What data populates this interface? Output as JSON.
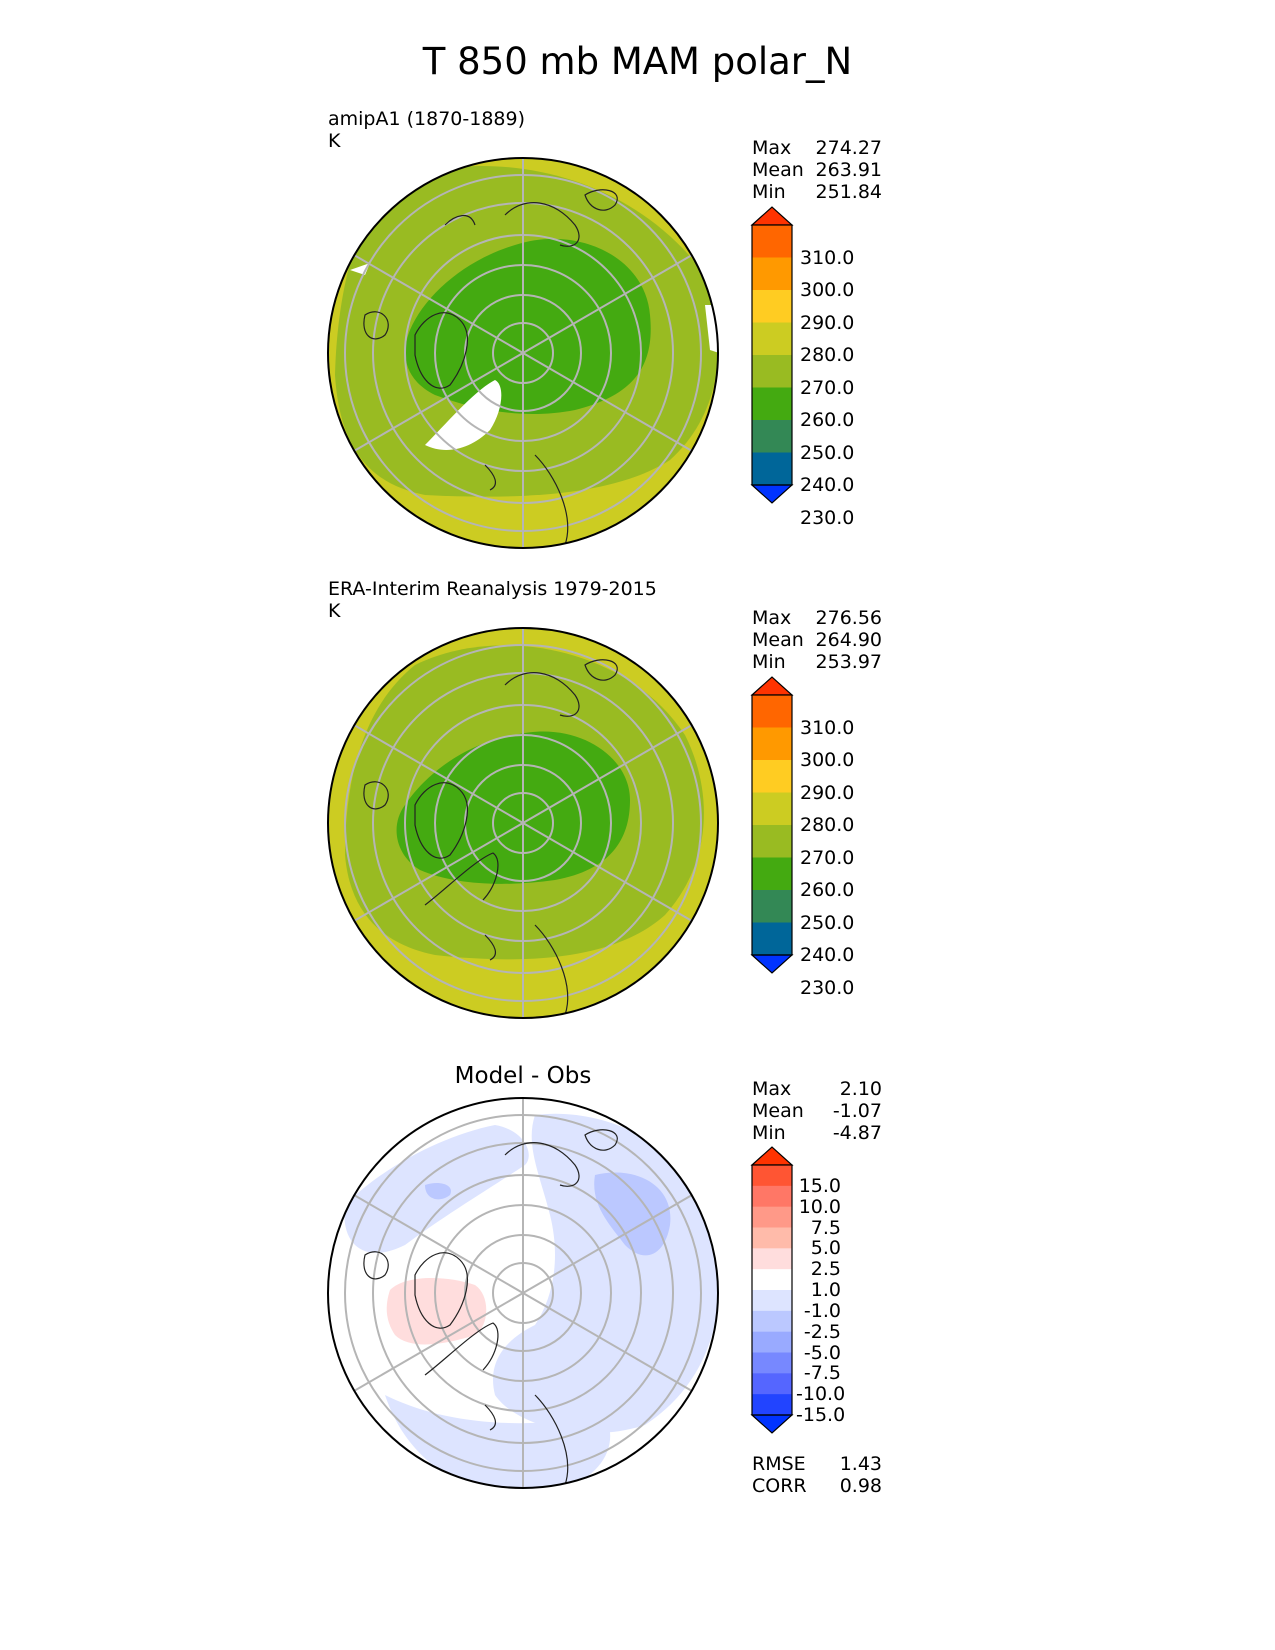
{
  "title": "T 850 mb MAM polar_N",
  "panels": [
    {
      "label": "amipA1 (1870-1889)",
      "units": "K",
      "stats": [
        [
          "Max",
          "274.27"
        ],
        [
          "Mean",
          "263.91"
        ],
        [
          "Min",
          "251.84"
        ]
      ],
      "colorbar": {
        "ticks": [
          "310.0",
          "300.0",
          "290.0",
          "280.0",
          "270.0",
          "260.0",
          "250.0",
          "240.0",
          "230.0"
        ],
        "colors": [
          "#ff3300",
          "#ff6600",
          "#ff9900",
          "#ffcc22",
          "#cccc22",
          "#99bb22",
          "#44aa11",
          "#338855",
          "#006699",
          "#0033ff"
        ]
      }
    },
    {
      "label": "ERA-Interim Reanalysis 1979-2015",
      "units": "K",
      "stats": [
        [
          "Max",
          "276.56"
        ],
        [
          "Mean",
          "264.90"
        ],
        [
          "Min",
          "253.97"
        ]
      ],
      "colorbar": {
        "ticks": [
          "310.0",
          "300.0",
          "290.0",
          "280.0",
          "270.0",
          "260.0",
          "250.0",
          "240.0",
          "230.0"
        ],
        "colors": [
          "#ff3300",
          "#ff6600",
          "#ff9900",
          "#ffcc22",
          "#cccc22",
          "#99bb22",
          "#44aa11",
          "#338855",
          "#006699",
          "#0033ff"
        ]
      }
    },
    {
      "label": "Model - Obs",
      "stats": [
        [
          "Max",
          "2.10"
        ],
        [
          "Mean",
          "-1.07"
        ],
        [
          "Min",
          "-4.87"
        ]
      ],
      "metrics": [
        [
          "RMSE",
          "1.43"
        ],
        [
          "CORR",
          "0.98"
        ]
      ],
      "colorbar": {
        "ticks": [
          "15.0",
          "10.0",
          "7.5",
          "5.0",
          "2.5",
          "1.0",
          "-1.0",
          "-2.5",
          "-5.0",
          "-7.5",
          "-10.0",
          "-15.0"
        ],
        "colors": [
          "#ff3300",
          "#ff5533",
          "#ff7766",
          "#ff9988",
          "#ffbbaa",
          "#ffdddd",
          "#ffffff",
          "#dde4ff",
          "#bbc8ff",
          "#99aaff",
          "#7788ff",
          "#5566ff",
          "#2244ff",
          "#0033ff"
        ]
      }
    }
  ]
}
